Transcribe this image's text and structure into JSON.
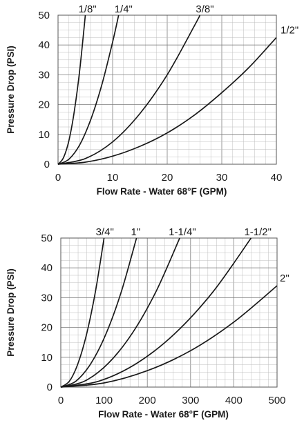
{
  "chart_data": [
    {
      "type": "line",
      "xlabel": "Flow Rate - Water 68°F (GPM)",
      "ylabel": "Pressure Drop (PSI)",
      "xlim": [
        0,
        40
      ],
      "ylim": [
        0,
        50
      ],
      "x_ticks": [
        "0",
        "10",
        "20",
        "30",
        "40"
      ],
      "y_ticks": [
        "0",
        "10",
        "20",
        "30",
        "40",
        "50"
      ],
      "grid": true,
      "series": [
        {
          "name": "1/8\"",
          "points": [
            [
              0,
              0
            ],
            [
              1,
              2.2
            ],
            [
              2,
              8
            ],
            [
              3,
              18
            ],
            [
              4,
              32
            ],
            [
              5,
              50
            ]
          ]
        },
        {
          "name": "1/4\"",
          "points": [
            [
              0,
              0
            ],
            [
              2,
              1.7
            ],
            [
              4,
              6.6
            ],
            [
              6,
              15
            ],
            [
              8,
              26.5
            ],
            [
              10,
              41
            ],
            [
              11.1,
              50
            ]
          ]
        },
        {
          "name": "3/8\"",
          "points": [
            [
              0,
              0
            ],
            [
              5,
              1.9
            ],
            [
              10,
              7.5
            ],
            [
              15,
              17
            ],
            [
              20,
              30
            ],
            [
              25,
              46.5
            ],
            [
              26,
              50
            ]
          ]
        },
        {
          "name": "1/2\"",
          "points": [
            [
              0,
              0
            ],
            [
              5,
              0.7
            ],
            [
              10,
              2.7
            ],
            [
              15,
              6
            ],
            [
              20,
              10.5
            ],
            [
              25,
              16.5
            ],
            [
              30,
              24
            ],
            [
              35,
              32.5
            ],
            [
              40,
              42.5
            ]
          ]
        }
      ]
    },
    {
      "type": "line",
      "xlabel": "Flow Rate - Water 68°F (GPM)",
      "ylabel": "Pressure Drop (PSI)",
      "xlim": [
        0,
        500
      ],
      "ylim": [
        0,
        50
      ],
      "x_ticks": [
        "0",
        "100",
        "200",
        "300",
        "400",
        "500"
      ],
      "y_ticks": [
        "0",
        "10",
        "20",
        "30",
        "40",
        "50"
      ],
      "grid": true,
      "series": [
        {
          "name": "3/4\"",
          "points": [
            [
              0,
              0
            ],
            [
              20,
              2
            ],
            [
              40,
              8
            ],
            [
              60,
              18
            ],
            [
              80,
              32
            ],
            [
              100,
              50
            ]
          ]
        },
        {
          "name": "1\"",
          "points": [
            [
              0,
              0
            ],
            [
              35,
              2
            ],
            [
              70,
              8
            ],
            [
              105,
              18
            ],
            [
              140,
              32
            ],
            [
              175,
              50
            ]
          ]
        },
        {
          "name": "1-1/4\"",
          "points": [
            [
              0,
              0
            ],
            [
              55,
              2
            ],
            [
              110,
              8
            ],
            [
              165,
              18
            ],
            [
              220,
              32
            ],
            [
              275,
              50
            ]
          ]
        },
        {
          "name": "1-1/2\"",
          "points": [
            [
              0,
              0
            ],
            [
              88,
              2
            ],
            [
              176,
              8
            ],
            [
              264,
              18
            ],
            [
              352,
              32
            ],
            [
              440,
              50
            ]
          ]
        },
        {
          "name": "2\"",
          "points": [
            [
              0,
              0
            ],
            [
              100,
              1.4
            ],
            [
              200,
              5.5
            ],
            [
              300,
              12.2
            ],
            [
              400,
              21.8
            ],
            [
              500,
              34
            ]
          ]
        }
      ]
    }
  ]
}
